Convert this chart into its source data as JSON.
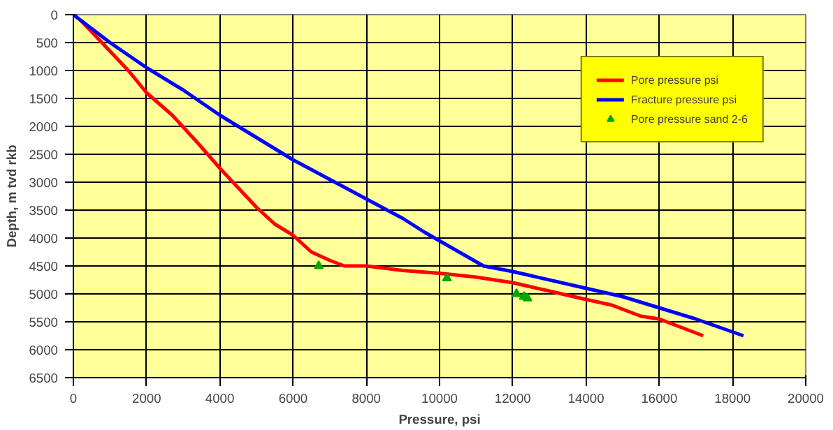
{
  "chart_data": {
    "type": "line",
    "xlabel": "Pressure, psi",
    "ylabel": "Depth, m tvd rkb",
    "xlim": [
      0,
      20000
    ],
    "ylim": [
      6500,
      0
    ],
    "xticks": [
      0,
      2000,
      4000,
      6000,
      8000,
      10000,
      12000,
      14000,
      16000,
      18000,
      20000
    ],
    "yticks": [
      0,
      500,
      1000,
      1500,
      2000,
      2500,
      3000,
      3500,
      4000,
      4500,
      5000,
      5500,
      6000,
      6500
    ],
    "grid": true,
    "legend": "top right",
    "line_style": "solid",
    "series": [
      {
        "name": "Pore pressure psi",
        "color": "#ff0000",
        "x": [
          200,
          1500,
          2000,
          2700,
          3400,
          4000,
          5000,
          5500,
          6000,
          6500,
          7000,
          7400,
          8000,
          9000,
          10000,
          11000,
          12000,
          13000,
          14000,
          14700,
          15500,
          16000,
          17200
        ],
        "values": [
          100,
          1000,
          1400,
          1800,
          2300,
          2750,
          3450,
          3750,
          3950,
          4250,
          4400,
          4500,
          4500,
          4580,
          4630,
          4700,
          4800,
          4950,
          5100,
          5200,
          5400,
          5450,
          5750
        ]
      },
      {
        "name": "Fracture pressure psi",
        "color": "#0000ff",
        "x": [
          0,
          1000,
          2000,
          3000,
          4000,
          5000,
          6000,
          7000,
          8000,
          9000,
          9600,
          10000,
          11200,
          12000,
          14000,
          15000,
          16000,
          17000,
          18300
        ],
        "values": [
          0,
          500,
          950,
          1350,
          1800,
          2200,
          2600,
          2950,
          3300,
          3650,
          3900,
          4050,
          4500,
          4600,
          4900,
          5050,
          5250,
          5450,
          5750
        ]
      },
      {
        "name": "Pore pressure sand 2-6",
        "color": "#00aa00",
        "type": "scatter",
        "marker": "triangle",
        "x": [
          6700,
          10200,
          12100,
          12300,
          12400
        ],
        "values": [
          4500,
          4720,
          5000,
          5050,
          5080
        ]
      }
    ]
  }
}
